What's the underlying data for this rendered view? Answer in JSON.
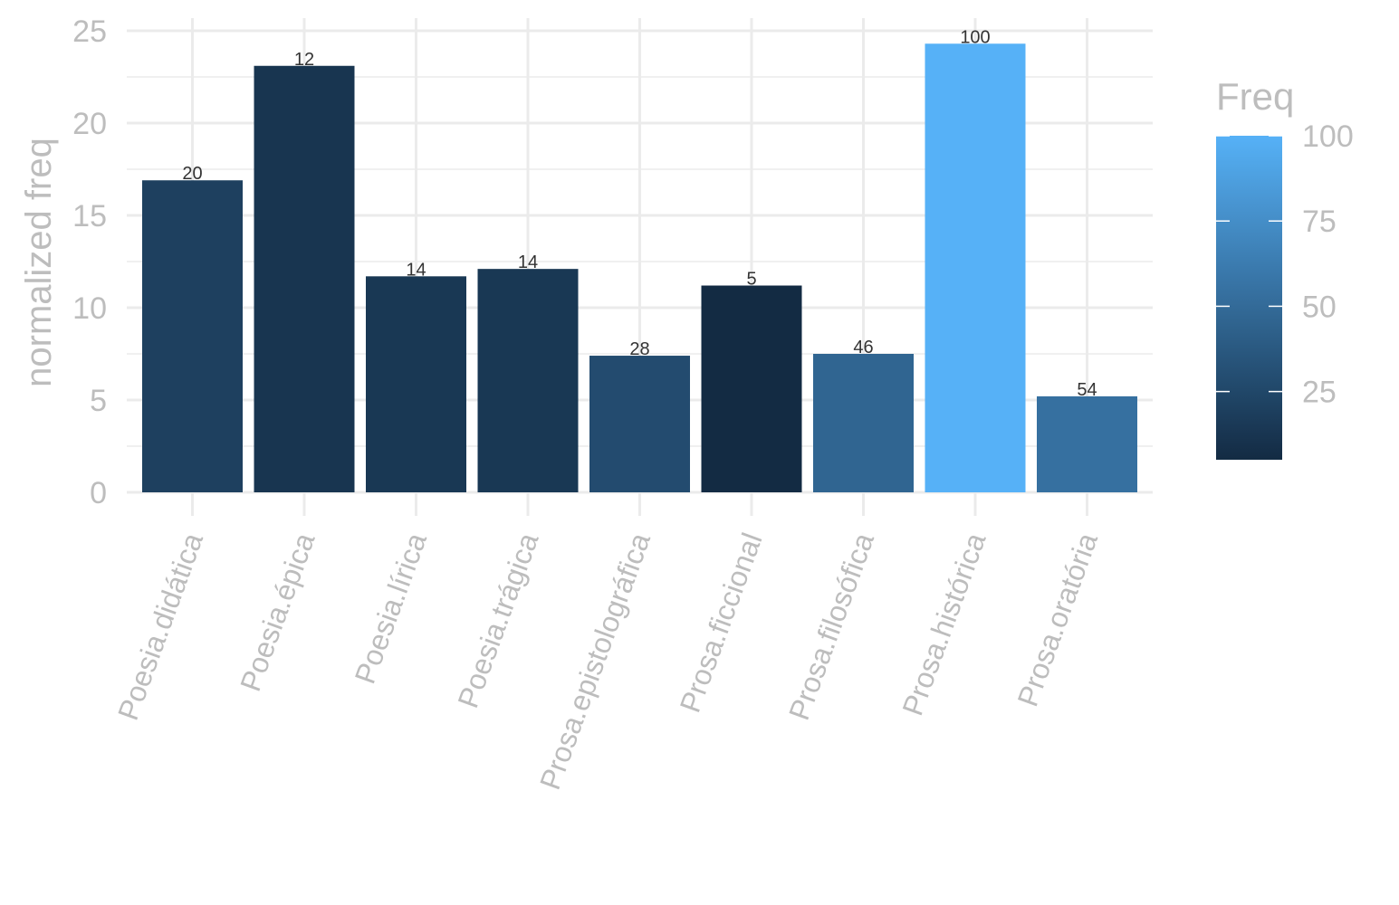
{
  "chart_data": {
    "type": "bar",
    "title": "",
    "xlabel": "",
    "ylabel": "normalized freq",
    "ylim": [
      0,
      25
    ],
    "y_ticks": [
      0,
      5,
      10,
      15,
      20,
      25
    ],
    "grid": true,
    "categories": [
      "Poesia.didática",
      "Poesia.épica",
      "Poesia.lírica",
      "Poesia.trágica",
      "Prosa.epistolográfica",
      "Prosa.ficcional",
      "Prosa.filosófica",
      "Prosa.histórica",
      "Prosa.oratória"
    ],
    "values": [
      16.9,
      23.1,
      11.7,
      12.1,
      7.4,
      11.2,
      7.5,
      24.3,
      5.2
    ],
    "fill_values": [
      20,
      12,
      14,
      14,
      28,
      5,
      46,
      100,
      54
    ],
    "data_labels": [
      "20",
      "12",
      "14",
      "14",
      "28",
      "5",
      "46",
      "100",
      "54"
    ],
    "legend": {
      "title": "Freq",
      "position": "right",
      "min": 5,
      "max": 100,
      "ticks": [
        25,
        50,
        75,
        100
      ],
      "color_low": "#132B43",
      "color_high": "#56B1F7"
    }
  }
}
